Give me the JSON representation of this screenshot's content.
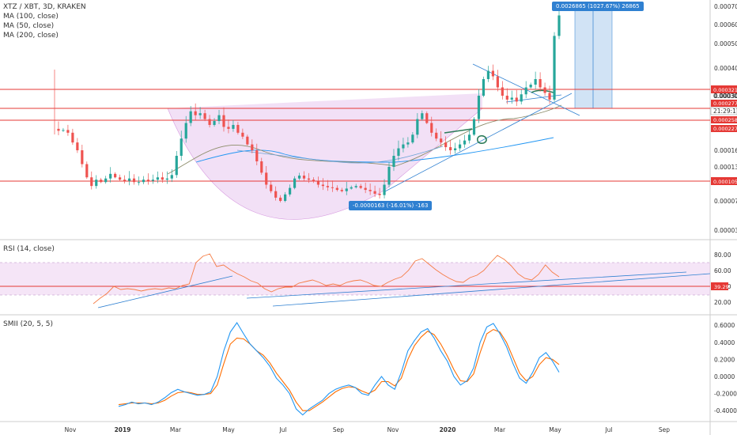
{
  "header": {
    "symbol": "XTZ / XBT, 3D, KRAKEN",
    "ma100": "MA (100, close)",
    "ma50": "MA (50, close)",
    "ma200": "MA (200, close)"
  },
  "rsi_panel": {
    "label": "RSI (14, close)",
    "current": "39.29"
  },
  "smii_panel": {
    "label": "SMII (20, 5, 5)"
  },
  "measure": {
    "top_box": "0.0026865 (1027.67%) 26865",
    "bottom_box": "-0.0000163 (-16.01%) -163"
  },
  "price_tags": {
    "tag1": "0.0003212",
    "tag2": "0.0003000",
    "tag3": "0.0002771",
    "tag4": "21:29:17",
    "tag5": "0.0002586",
    "tag6": "0.0002279",
    "tag7": "0.0001055"
  },
  "colors": {
    "up": "#26a69a",
    "down": "#ef5350",
    "cup": "#e8c6ee",
    "red_line": "#e53935",
    "blue": "#2f80d1",
    "rsi": "#f57c45",
    "smii_fast": "#2196f3",
    "smii_slow": "#ff6d00"
  },
  "chart_data": [
    {
      "type": "candlestick",
      "title": "XTZ / XBT, 3D, KRAKEN",
      "x": [
        "Nov",
        "2019",
        "Mar",
        "May",
        "Jul",
        "Sep",
        "Nov",
        "2020",
        "Mar",
        "May",
        "Jul",
        "Sep"
      ],
      "y_ticks": [
        "0.0007000",
        "0.0006000",
        "0.0005000",
        "0.0004000",
        "0.0003000",
        "0.0001600",
        "0.0001300",
        "0.0001055",
        "0.0000750",
        "0.0000390"
      ],
      "series": [
        {
          "name": "MA (100, close)"
        },
        {
          "name": "MA (50, close)"
        },
        {
          "name": "MA (200, close)"
        }
      ],
      "horizontal_levels": [
        0.0003212,
        0.0002771,
        0.0002586,
        0.0002279,
        0.0001055
      ],
      "path": [
        0.000215,
        0.00021,
        0.000212,
        0.000205,
        0.00018,
        0.00016,
        0.000135,
        0.000112,
        9.8e-05,
        0.000108,
        0.000104,
        0.00011,
        0.000118,
        0.000112,
        0.000108,
        0.000106,
        0.00011,
        0.000104,
        0.000104,
        0.000108,
        0.000106,
        0.000108,
        0.000112,
        0.000108,
        0.00011,
        0.000116,
        0.00015,
        0.00019,
        0.00023,
        0.00026,
        0.00025,
        0.000255,
        0.00024,
        0.000225,
        0.000235,
        0.00025,
        0.00022,
        0.000215,
        0.000225,
        0.000205,
        0.000195,
        0.000175,
        0.00016,
        0.00014,
        0.00012,
        0.0001,
        9e-05,
        8e-05,
        7.5e-05,
        8.5e-05,
        9.5e-05,
        0.00011,
        0.000115,
        0.00011,
        0.000108,
        0.000105,
        0.0001,
        9.8e-05,
        9.6e-05,
        9.5e-05,
        9.2e-05,
        9e-05,
        9.4e-05,
        9.6e-05,
        9.8e-05,
        9.5e-05,
        9.2e-05,
        9e-05,
        8.6e-05,
        8.4e-05,
        0.0001,
        0.00013,
        0.00015,
        0.000165,
        0.000175,
        0.00018,
        0.0002,
        0.00024,
        0.000255,
        0.00023,
        0.000205,
        0.00019,
        0.00018,
        0.000168,
        0.00016,
        0.000165,
        0.000175,
        0.000185,
        0.0002,
        0.00024,
        0.0003,
        0.00036,
        0.00039,
        0.00037,
        0.00033,
        0.0003,
        0.00029,
        0.000295,
        0.000285,
        0.000305,
        0.00033,
        0.00034,
        0.00036,
        0.00033,
        0.00031,
        0.00029,
        0.00054,
        0.00065
      ]
    },
    {
      "type": "line",
      "title": "RSI (14, close)",
      "y_ticks": [
        "80.00",
        "60.00",
        "40.00",
        "20.00"
      ],
      "ylim": [
        10,
        90
      ],
      "series": [
        {
          "values": [
            18,
            25,
            31,
            40,
            36,
            37,
            36,
            34,
            36,
            37,
            36,
            38,
            37,
            41,
            43,
            70,
            78,
            81,
            65,
            67,
            61,
            56,
            52,
            47,
            44,
            37,
            33,
            37,
            39,
            39,
            44,
            46,
            48,
            45,
            41,
            43,
            41,
            45,
            47,
            48,
            45,
            41,
            40,
            45,
            49,
            52,
            60,
            72,
            75,
            68,
            61,
            55,
            50,
            46,
            45,
            51,
            54,
            60,
            70,
            79,
            74,
            66,
            56,
            50,
            48,
            55,
            67,
            58,
            52
          ]
        }
      ]
    },
    {
      "type": "line",
      "title": "SMII (20, 5, 5)",
      "y_ticks": [
        "0.6000",
        "0.4000",
        "0.2000",
        "0.0000",
        "-0.2000",
        "-0.4000"
      ],
      "ylim": [
        -0.55,
        0.68
      ],
      "series": [
        {
          "values": [
            -0.35,
            -0.33,
            -0.3,
            -0.32,
            -0.31,
            -0.33,
            -0.3,
            -0.25,
            -0.19,
            -0.15,
            -0.18,
            -0.2,
            -0.22,
            -0.21,
            -0.18,
            0.0,
            0.3,
            0.52,
            0.63,
            0.5,
            0.38,
            0.3,
            0.22,
            0.12,
            -0.02,
            -0.1,
            -0.2,
            -0.38,
            -0.45,
            -0.38,
            -0.33,
            -0.28,
            -0.2,
            -0.15,
            -0.12,
            -0.1,
            -0.13,
            -0.2,
            -0.22,
            -0.1,
            0.0,
            -0.1,
            -0.15,
            0.05,
            0.3,
            0.42,
            0.52,
            0.56,
            0.45,
            0.3,
            0.18,
            0.0,
            -0.1,
            -0.05,
            0.1,
            0.4,
            0.58,
            0.62,
            0.5,
            0.35,
            0.15,
            -0.02,
            -0.08,
            0.05,
            0.22,
            0.28,
            0.18,
            0.05
          ]
        },
        {
          "values": [
            -0.33,
            -0.32,
            -0.31,
            -0.31,
            -0.31,
            -0.32,
            -0.31,
            -0.28,
            -0.23,
            -0.19,
            -0.18,
            -0.19,
            -0.21,
            -0.21,
            -0.2,
            -0.1,
            0.15,
            0.38,
            0.45,
            0.44,
            0.38,
            0.3,
            0.25,
            0.16,
            0.04,
            -0.06,
            -0.16,
            -0.3,
            -0.4,
            -0.4,
            -0.35,
            -0.3,
            -0.24,
            -0.18,
            -0.14,
            -0.12,
            -0.13,
            -0.17,
            -0.2,
            -0.16,
            -0.06,
            -0.06,
            -0.11,
            -0.02,
            0.2,
            0.36,
            0.46,
            0.53,
            0.49,
            0.38,
            0.24,
            0.08,
            -0.05,
            -0.06,
            0.03,
            0.28,
            0.5,
            0.55,
            0.52,
            0.4,
            0.22,
            0.04,
            -0.05,
            0.0,
            0.14,
            0.22,
            0.2,
            0.14
          ]
        }
      ]
    }
  ]
}
